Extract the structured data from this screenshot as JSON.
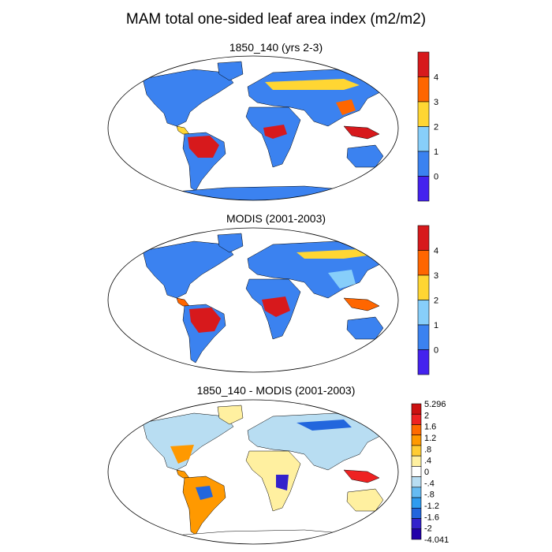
{
  "title": "MAM total one-sided leaf area index (m2/m2)",
  "panels": [
    {
      "title": "1850_140 (yrs 2-3)",
      "colorbar": {
        "labels": [
          "4",
          "3",
          "2",
          "1",
          "0"
        ],
        "colors": [
          "#d7191c",
          "#ff6600",
          "#ffd633",
          "#87cefa",
          "#3b82f0",
          "#4422ee"
        ]
      }
    },
    {
      "title": "MODIS (2001-2003)",
      "colorbar": {
        "labels": [
          "4",
          "3",
          "2",
          "1",
          "0"
        ],
        "colors": [
          "#d7191c",
          "#ff6600",
          "#ffd633",
          "#87cefa",
          "#3b82f0",
          "#4422ee"
        ]
      }
    },
    {
      "title": "1850_140 - MODIS (2001-2003)",
      "colorbar": {
        "labels": [
          "5.296",
          "2",
          "1.6",
          "1.2",
          ".8",
          ".4",
          "0",
          "-.4",
          "-.8",
          "-1.2",
          "-1.6",
          "-2",
          "-4.041"
        ],
        "colors": [
          "#cc1111",
          "#ee2222",
          "#ff6a00",
          "#ff9900",
          "#ffcc33",
          "#fff0a0",
          "#ffffff",
          "#b8ddf2",
          "#66bbf2",
          "#2f9cf0",
          "#2266dd",
          "#3322cc",
          "#2200aa"
        ]
      }
    }
  ]
}
